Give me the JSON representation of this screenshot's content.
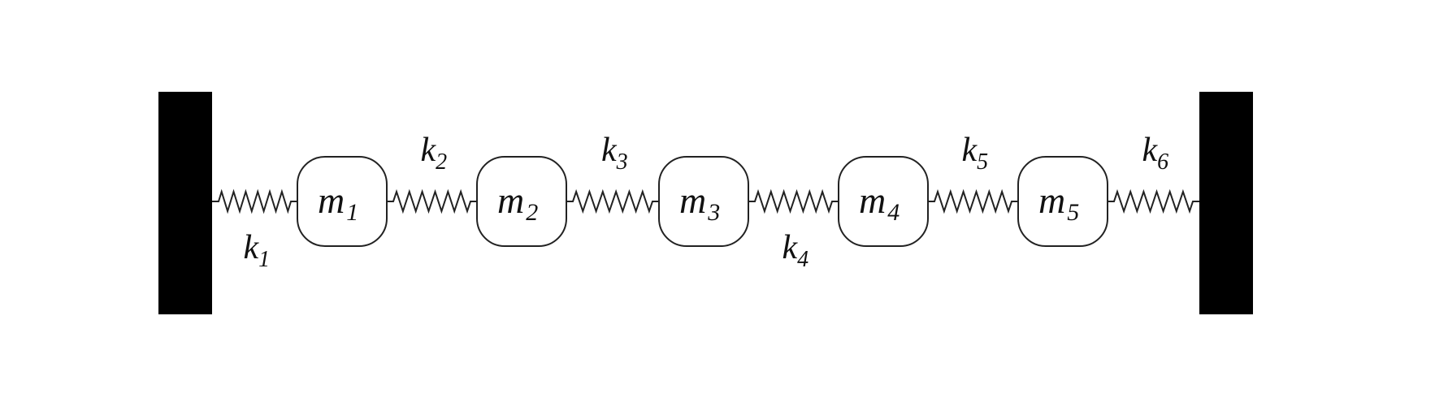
{
  "masses": [
    {
      "symbol": "m",
      "index": "1"
    },
    {
      "symbol": "m",
      "index": "2"
    },
    {
      "symbol": "m",
      "index": "3"
    },
    {
      "symbol": "m",
      "index": "4"
    },
    {
      "symbol": "m",
      "index": "5"
    }
  ],
  "springs": [
    {
      "symbol": "k",
      "index": "1",
      "label_side": "below"
    },
    {
      "symbol": "k",
      "index": "2",
      "label_side": "above"
    },
    {
      "symbol": "k",
      "index": "3",
      "label_side": "above"
    },
    {
      "symbol": "k",
      "index": "4",
      "label_side": "below"
    },
    {
      "symbol": "k",
      "index": "5",
      "label_side": "above"
    },
    {
      "symbol": "k",
      "index": "6",
      "label_side": "above"
    }
  ],
  "colors": {
    "wall": "#000000",
    "line": "#222222",
    "mass_fill": "#ffffff"
  }
}
